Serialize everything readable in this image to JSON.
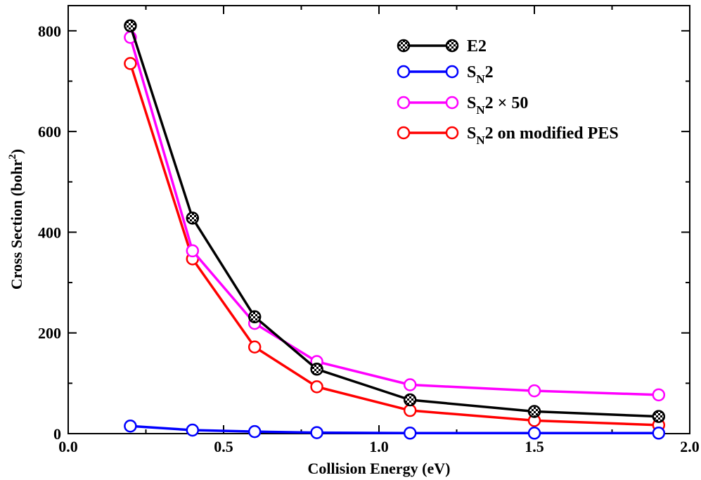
{
  "chart_data": {
    "type": "line",
    "xlabel": "Collision Energy (eV)",
    "ylabel": {
      "base": "Cross Section (bohr",
      "sup": "2",
      "close": ")"
    },
    "xlim": [
      0.0,
      2.0
    ],
    "ylim": [
      0,
      850
    ],
    "xticks": [
      0.0,
      0.5,
      1.0,
      1.5,
      2.0
    ],
    "xtick_labels": [
      "0.0",
      "0.5",
      "1.0",
      "1.5",
      "2.0"
    ],
    "yticks": [
      0,
      200,
      400,
      600,
      800
    ],
    "ytick_labels": [
      "0",
      "200",
      "400",
      "600",
      "800"
    ],
    "grid": false,
    "legend_position": "top-right",
    "x": [
      0.2,
      0.4,
      0.6,
      0.8,
      1.1,
      1.5,
      1.9
    ],
    "series": [
      {
        "name": "E2",
        "legend": {
          "pre": "E2",
          "sub": "",
          "post": ""
        },
        "color": "#000000",
        "marker": "checker-circle",
        "values": [
          810,
          428,
          232,
          128,
          67,
          44,
          34
        ]
      },
      {
        "name": "SN2",
        "legend": {
          "pre": "S",
          "sub": "N",
          "post": "2"
        },
        "color": "#0000ff",
        "marker": "open-circle",
        "values": [
          15,
          7,
          4,
          2,
          1,
          1,
          1
        ]
      },
      {
        "name": "SN2 × 50",
        "legend": {
          "pre": "S",
          "sub": "N",
          "post": "2 × 50"
        },
        "color": "#ff00ff",
        "marker": "open-circle",
        "values": [
          787,
          363,
          219,
          143,
          97,
          85,
          77
        ]
      },
      {
        "name": "SN2 on modified PES",
        "legend": {
          "pre": "S",
          "sub": "N",
          "post": "2 on modified PES"
        },
        "color": "#ff0000",
        "marker": "open-circle",
        "values": [
          735,
          347,
          172,
          93,
          46,
          26,
          17
        ]
      }
    ]
  }
}
